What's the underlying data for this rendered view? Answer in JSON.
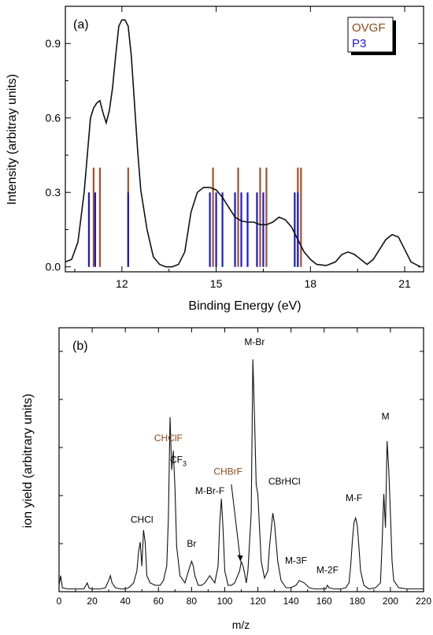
{
  "chart_data": [
    {
      "type": "line",
      "panel_label": "(a)",
      "xlabel": "Binding Energy (eV)",
      "ylabel": "Intensity (arbitray units)",
      "xlim": [
        10.2,
        21.6
      ],
      "ylim": [
        -0.02,
        1.05
      ],
      "xticks": [
        12,
        15,
        18,
        21
      ],
      "yticks": [
        0.0,
        0.3,
        0.6,
        0.9
      ],
      "ytick_labels": [
        "0.0",
        "0.3",
        "0.6",
        "0.9"
      ],
      "legend": {
        "placement": "top-right",
        "entries": [
          {
            "label": "OVGF",
            "color": "#8a4a1c"
          },
          {
            "label": "P3",
            "color": "#1a1acc"
          }
        ]
      },
      "spectrum": {
        "x": [
          10.2,
          10.4,
          10.6,
          10.8,
          11.0,
          11.1,
          11.2,
          11.3,
          11.4,
          11.5,
          11.6,
          11.7,
          11.8,
          11.9,
          12.0,
          12.1,
          12.2,
          12.3,
          12.4,
          12.5,
          12.6,
          12.8,
          13.0,
          13.2,
          13.4,
          13.6,
          13.8,
          14.0,
          14.2,
          14.4,
          14.6,
          14.8,
          15.0,
          15.2,
          15.4,
          15.6,
          15.8,
          16.0,
          16.2,
          16.4,
          16.6,
          16.8,
          17.0,
          17.2,
          17.4,
          17.6,
          17.8,
          18.0,
          18.2,
          18.5,
          18.8,
          19.0,
          19.2,
          19.4,
          19.6,
          19.8,
          20.0,
          20.2,
          20.4,
          20.6,
          20.8,
          21.0,
          21.2,
          21.5
        ],
        "y": [
          0.02,
          0.03,
          0.1,
          0.3,
          0.6,
          0.64,
          0.66,
          0.67,
          0.62,
          0.58,
          0.63,
          0.72,
          0.85,
          0.97,
          0.995,
          0.995,
          0.97,
          0.85,
          0.66,
          0.47,
          0.31,
          0.15,
          0.04,
          0.01,
          0.0,
          0.0,
          0.01,
          0.06,
          0.22,
          0.3,
          0.32,
          0.32,
          0.31,
          0.28,
          0.24,
          0.2,
          0.185,
          0.18,
          0.18,
          0.17,
          0.17,
          0.18,
          0.2,
          0.19,
          0.16,
          0.11,
          0.06,
          0.03,
          0.01,
          0.005,
          0.02,
          0.05,
          0.06,
          0.05,
          0.03,
          0.01,
          0.03,
          0.07,
          0.11,
          0.13,
          0.12,
          0.07,
          0.02,
          0.0
        ]
      },
      "ovgf_x": [
        11.1,
        11.3,
        12.2,
        14.9,
        15.7,
        16.4,
        16.6,
        17.6,
        17.7
      ],
      "ovgf_height": 0.4,
      "p3_x": [
        10.95,
        11.15,
        12.2,
        14.8,
        15.0,
        15.2,
        15.6,
        15.8,
        16.0,
        16.3,
        16.5,
        17.5,
        17.6
      ],
      "p3_height": 0.3
    },
    {
      "type": "line",
      "panel_label": "(b)",
      "xlabel": "m/z",
      "ylabel": "ion yield (arbitrary units)",
      "xlim": [
        0,
        220
      ],
      "ylim": [
        0,
        100
      ],
      "xticks": [
        0,
        20,
        40,
        60,
        80,
        100,
        120,
        140,
        160,
        180,
        200,
        220
      ],
      "spectrum": {
        "x": [
          0,
          1,
          2,
          5,
          10,
          15,
          17,
          18,
          19,
          22,
          25,
          28,
          30,
          31,
          32,
          34,
          37,
          40,
          42,
          45,
          47,
          48,
          49,
          50,
          51,
          52,
          53,
          55,
          58,
          61,
          63,
          65,
          66,
          67,
          68,
          69,
          70,
          71,
          73,
          76,
          79,
          80,
          81,
          82,
          84,
          86,
          88,
          91,
          92,
          94,
          96,
          97,
          98,
          99,
          100,
          102,
          104,
          106,
          109,
          110,
          111,
          112,
          113,
          114,
          116,
          117,
          118,
          119,
          120,
          122,
          124,
          126,
          127,
          128,
          129,
          130,
          132,
          134,
          137,
          140,
          143,
          145,
          148,
          151,
          154,
          158,
          161,
          162,
          163,
          166,
          170,
          173,
          175,
          176,
          177,
          178,
          179,
          180,
          181,
          182,
          184,
          187,
          191,
          194,
          195,
          196,
          197,
          198,
          199,
          200,
          201,
          202,
          205,
          210,
          215,
          220
        ],
        "y": [
          2,
          6,
          1,
          0.5,
          0.5,
          0.5,
          3,
          1,
          0.5,
          0.5,
          0.5,
          1,
          4,
          6,
          3,
          1,
          0.5,
          0.5,
          1,
          3,
          8,
          16,
          20,
          10,
          25,
          20,
          6,
          3,
          2,
          2,
          4,
          10,
          30,
          72,
          50,
          58,
          42,
          18,
          6,
          3,
          10,
          12,
          10,
          6,
          2,
          2,
          3,
          6,
          5,
          3,
          10,
          28,
          38,
          25,
          8,
          2,
          2,
          3,
          8,
          12,
          10,
          7,
          3,
          8,
          32,
          96,
          72,
          44,
          40,
          12,
          5,
          8,
          18,
          25,
          32,
          28,
          12,
          4,
          1,
          1,
          2,
          4,
          3,
          1,
          0.5,
          0.5,
          0.5,
          2,
          1,
          0.5,
          0.5,
          1,
          3,
          10,
          20,
          28,
          30,
          27,
          18,
          8,
          2,
          0.5,
          1,
          3,
          20,
          40,
          26,
          62,
          50,
          32,
          12,
          4,
          1,
          0.5,
          0.5,
          0.5
        ]
      },
      "annotations": [
        {
          "text": "CHCl",
          "x": 50,
          "y": 28,
          "color": "#000000"
        },
        {
          "text": "CHClF",
          "x": 66,
          "y": 62,
          "color": "#8a4a1c"
        },
        {
          "text": "CF3",
          "sub": "3",
          "x": 72,
          "y": 53,
          "color": "#000000"
        },
        {
          "text": "Br",
          "x": 80,
          "y": 18,
          "color": "#000000"
        },
        {
          "text": "M-Br-F",
          "x": 91,
          "y": 40,
          "color": "#000000"
        },
        {
          "text": "CHBrF",
          "x": 102,
          "y": 48,
          "color": "#8a4a1c"
        },
        {
          "text": "M-Br",
          "x": 118,
          "y": 102,
          "color": "#000000"
        },
        {
          "text": "CBrHCl",
          "x": 136,
          "y": 44,
          "color": "#000000"
        },
        {
          "text": "M-3F",
          "x": 143,
          "y": 11,
          "color": "#000000"
        },
        {
          "text": "M-2F",
          "x": 162,
          "y": 7,
          "color": "#000000"
        },
        {
          "text": "M-F",
          "x": 178,
          "y": 37,
          "color": "#000000"
        },
        {
          "text": "M",
          "x": 197,
          "y": 71,
          "color": "#000000"
        }
      ]
    }
  ]
}
